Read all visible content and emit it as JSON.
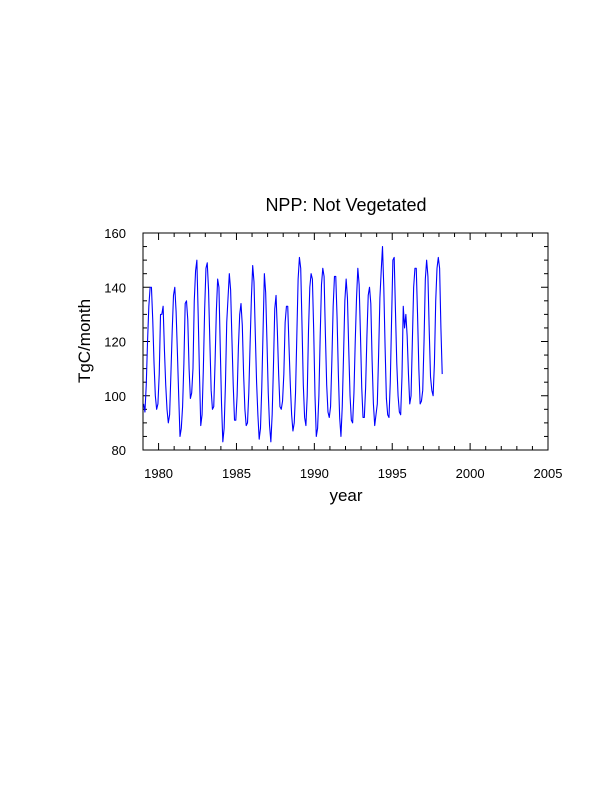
{
  "chart_data": {
    "type": "line",
    "title": "NPP: Not Vegetated",
    "xlabel": "year",
    "ylabel": "TgC/month",
    "xlim": [
      1979,
      2005
    ],
    "ylim": [
      80,
      160
    ],
    "x_ticks": [
      1980,
      1985,
      1990,
      1995,
      2000,
      2005
    ],
    "y_ticks": [
      80,
      100,
      120,
      140,
      160
    ],
    "grid": false,
    "legend": "none",
    "line_color": "#0000ff",
    "series": [
      {
        "start_year": 1979,
        "step_months": 1,
        "values": [
          97,
          94,
          104,
          120,
          133,
          140,
          140,
          128,
          112,
          100,
          95,
          97,
          108,
          130,
          130,
          133,
          117,
          104,
          95,
          90,
          93,
          108,
          124,
          137,
          140,
          131,
          116,
          100,
          85,
          88,
          96,
          112,
          134,
          135,
          128,
          110,
          99,
          101,
          110,
          135,
          146,
          150,
          130,
          108,
          89,
          93,
          110,
          132,
          147,
          149,
          139,
          120,
          102,
          95,
          96,
          112,
          131,
          143,
          140,
          118,
          97,
          83,
          88,
          104,
          127,
          136,
          145,
          139,
          121,
          104,
          91,
          91,
          100,
          118,
          130,
          134,
          126,
          108,
          95,
          89,
          90,
          101,
          119,
          136,
          148,
          142,
          123,
          105,
          93,
          84,
          88,
          103,
          124,
          145,
          138,
          120,
          101,
          89,
          83,
          93,
          111,
          132,
          137,
          124,
          108,
          96,
          95,
          98,
          108,
          127,
          133,
          133,
          118,
          104,
          93,
          87,
          90,
          101,
          122,
          143,
          151,
          147,
          126,
          104,
          92,
          89,
          100,
          124,
          140,
          145,
          143,
          124,
          100,
          85,
          88,
          100,
          122,
          141,
          147,
          144,
          123,
          104,
          94,
          92,
          96,
          113,
          133,
          144,
          144,
          129,
          108,
          92,
          85,
          96,
          115,
          135,
          143,
          136,
          117,
          100,
          91,
          90,
          101,
          120,
          136,
          147,
          141,
          123,
          103,
          92,
          92,
          103,
          122,
          137,
          140,
          134,
          113,
          97,
          89,
          93,
          97,
          115,
          136,
          146,
          155,
          140,
          118,
          99,
          93,
          92,
          105,
          128,
          150,
          151,
          131,
          112,
          100,
          94,
          93,
          107,
          133,
          125,
          130,
          122,
          108,
          97,
          100,
          120,
          140,
          147,
          147,
          130,
          110,
          97,
          98,
          102,
          120,
          143,
          150,
          144,
          124,
          107,
          102,
          100,
          112,
          135,
          147,
          151,
          147,
          125,
          108
        ]
      }
    ]
  }
}
